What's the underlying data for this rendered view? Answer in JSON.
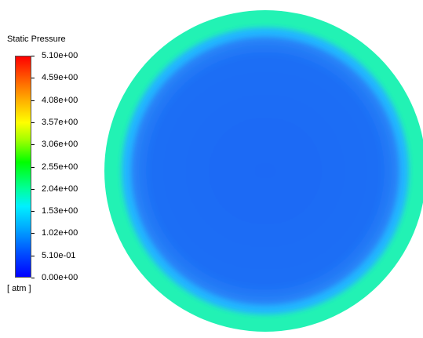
{
  "chart_data": {
    "type": "heatmap",
    "title": "Static Pressure",
    "unit": "[ atm ]",
    "colorbar": {
      "min": 0.0,
      "max": 5.1,
      "tick_labels": [
        "5.10e+00",
        "4.59e+00",
        "4.08e+00",
        "3.57e+00",
        "3.06e+00",
        "2.55e+00",
        "2.04e+00",
        "1.53e+00",
        "1.02e+00",
        "5.10e-01",
        "0.00e+00"
      ],
      "tick_values": [
        5.1,
        4.59,
        4.08,
        3.57,
        3.06,
        2.55,
        2.04,
        1.53,
        1.02,
        0.51,
        0.0
      ],
      "colormap": [
        "#0000ff",
        "#00ffff",
        "#00ff00",
        "#ffff00",
        "#ff0000"
      ]
    },
    "field": {
      "shape": "circle",
      "regions": [
        {
          "name": "outer ring",
          "pressure_atm": 1.6,
          "color": "#22f2b4"
        },
        {
          "name": "transition band",
          "pressure_atm": 1.1,
          "color": "#24b6ff"
        },
        {
          "name": "interior",
          "pressure_atm": 0.6,
          "color": "#1b6cf6"
        }
      ]
    }
  }
}
